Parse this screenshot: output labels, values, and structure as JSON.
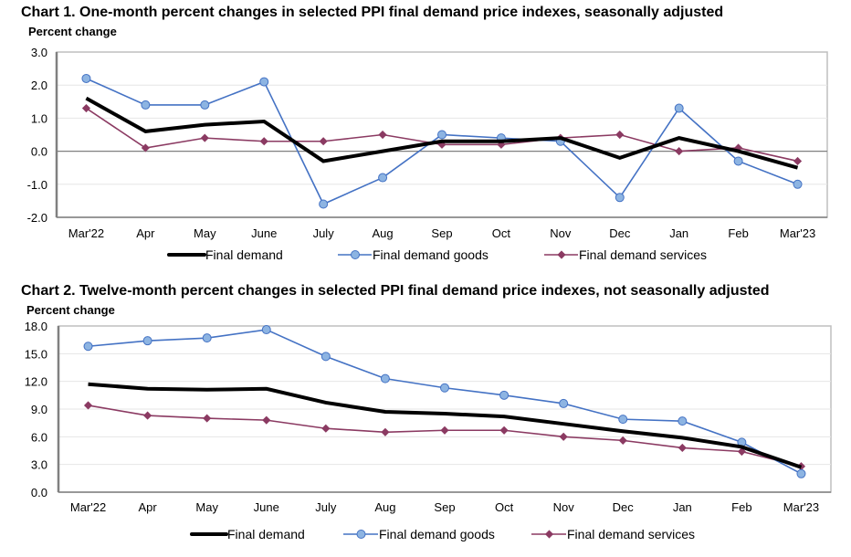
{
  "colors": {
    "final_demand": "#000000",
    "goods_line": "#4472C4",
    "goods_marker": "#8DB4E2",
    "services": "#8B3A62",
    "grid": "#E6E6E6",
    "frame": "#BFBFBF",
    "axis": "#808080",
    "zero_line": "#808080"
  },
  "chart_data": [
    {
      "type": "line",
      "title": "Chart 1. One-month percent changes in selected PPI final demand price indexes, seasonally adjusted",
      "ylabel": "Percent change",
      "xlabel": "",
      "categories": [
        "Mar'22",
        "Apr",
        "May",
        "June",
        "July",
        "Aug",
        "Sep",
        "Oct",
        "Nov",
        "Dec",
        "Jan",
        "Feb",
        "Mar'23"
      ],
      "ylim": [
        -2.0,
        3.0
      ],
      "yticks": [
        "3.0",
        "2.0",
        "1.0",
        "0.0",
        "-1.0",
        "-2.0"
      ],
      "ytick_values": [
        3,
        2,
        1,
        0,
        -1,
        -2
      ],
      "grid": true,
      "legend_position": "bottom",
      "series": [
        {
          "name": "Final demand",
          "key": "final_demand",
          "marker": "none",
          "values": [
            1.6,
            0.6,
            0.8,
            0.9,
            -0.3,
            0.0,
            0.3,
            0.3,
            0.4,
            -0.2,
            0.4,
            0.0,
            -0.5
          ]
        },
        {
          "name": "Final demand goods",
          "key": "goods",
          "marker": "circle",
          "values": [
            2.2,
            1.4,
            1.4,
            2.1,
            -1.6,
            -0.8,
            0.5,
            0.4,
            0.3,
            -1.4,
            1.3,
            -0.3,
            -1.0
          ]
        },
        {
          "name": "Final demand services",
          "key": "services",
          "marker": "diamond",
          "values": [
            1.3,
            0.1,
            0.4,
            0.3,
            0.3,
            0.5,
            0.2,
            0.2,
            0.4,
            0.5,
            0.0,
            0.1,
            -0.3
          ]
        }
      ]
    },
    {
      "type": "line",
      "title": "Chart 2. Twelve-month percent changes in selected PPI final demand price indexes, not seasonally adjusted",
      "ylabel": "Percent change",
      "xlabel": "",
      "categories": [
        "Mar'22",
        "Apr",
        "May",
        "June",
        "July",
        "Aug",
        "Sep",
        "Oct",
        "Nov",
        "Dec",
        "Jan",
        "Feb",
        "Mar'23"
      ],
      "ylim": [
        0.0,
        18.0
      ],
      "yticks": [
        "18.0",
        "15.0",
        "12.0",
        "9.0",
        "6.0",
        "3.0",
        "0.0"
      ],
      "ytick_values": [
        18,
        15,
        12,
        9,
        6,
        3,
        0
      ],
      "grid": true,
      "legend_position": "bottom",
      "series": [
        {
          "name": "Final demand",
          "key": "final_demand",
          "marker": "none",
          "values": [
            11.7,
            11.2,
            11.1,
            11.2,
            9.7,
            8.7,
            8.5,
            8.2,
            7.4,
            6.6,
            5.9,
            4.9,
            2.7
          ]
        },
        {
          "name": "Final demand goods",
          "key": "goods",
          "marker": "circle",
          "values": [
            15.8,
            16.4,
            16.7,
            17.6,
            14.7,
            12.3,
            11.3,
            10.5,
            9.6,
            7.9,
            7.7,
            5.4,
            2.0
          ]
        },
        {
          "name": "Final demand services",
          "key": "services",
          "marker": "diamond",
          "values": [
            9.4,
            8.3,
            8.0,
            7.8,
            6.9,
            6.5,
            6.7,
            6.7,
            6.0,
            5.6,
            4.8,
            4.4,
            2.8
          ]
        }
      ]
    }
  ]
}
